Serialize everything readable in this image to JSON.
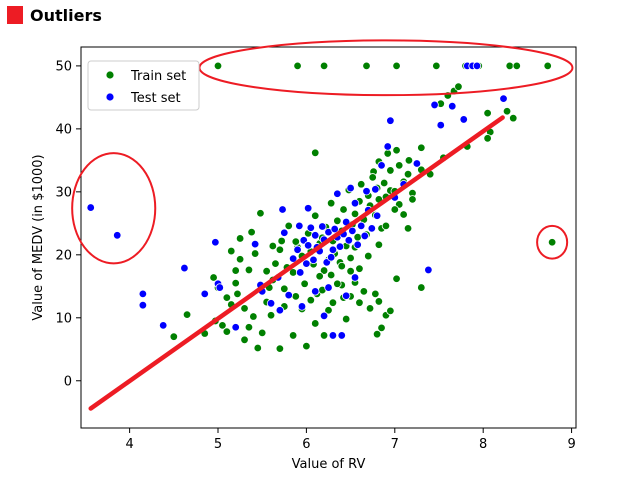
{
  "header": {
    "title": "Outliers",
    "marker_color": "#ed1c24"
  },
  "chart_data": {
    "type": "scatter",
    "title": "",
    "xlabel": "Value of RV",
    "ylabel": "Value of MEDV (in $1000)",
    "xlim": [
      3.45,
      9.05
    ],
    "ylim": [
      -7.5,
      53
    ],
    "xticks": [
      4,
      5,
      6,
      7,
      8,
      9
    ],
    "yticks": [
      0,
      10,
      20,
      30,
      40,
      50
    ],
    "grid": false,
    "legend_position": "top-left",
    "series": [
      {
        "name": "Train set",
        "color": "#008000",
        "points": [
          [
            5.0,
            50
          ],
          [
            5.9,
            50
          ],
          [
            6.2,
            50
          ],
          [
            6.68,
            50
          ],
          [
            7.02,
            50
          ],
          [
            7.47,
            50
          ],
          [
            7.8,
            50
          ],
          [
            7.95,
            50
          ],
          [
            8.3,
            50
          ],
          [
            8.38,
            50
          ],
          [
            8.73,
            50
          ],
          [
            7.67,
            46
          ],
          [
            7.72,
            46.7
          ],
          [
            7.6,
            45.3
          ],
          [
            7.52,
            44
          ],
          [
            8.05,
            42.5
          ],
          [
            8.27,
            42.8
          ],
          [
            8.34,
            41.7
          ],
          [
            8.08,
            39.5
          ],
          [
            8.05,
            38.5
          ],
          [
            7.82,
            37.2
          ],
          [
            7.3,
            37
          ],
          [
            7.4,
            32.8
          ],
          [
            7.3,
            33.5
          ],
          [
            7.16,
            35
          ],
          [
            6.82,
            34.8
          ],
          [
            6.76,
            33.2
          ],
          [
            6.95,
            30.2
          ],
          [
            7.05,
            28
          ],
          [
            7.55,
            35.4
          ],
          [
            8.78,
            22
          ],
          [
            4.65,
            10.5
          ],
          [
            4.97,
            9.5
          ],
          [
            5.05,
            8.8
          ],
          [
            5.2,
            15.5
          ],
          [
            5.3,
            11.5
          ],
          [
            5.2,
            17.5
          ],
          [
            5.25,
            19.3
          ],
          [
            5.35,
            8.5
          ],
          [
            5.42,
            20.2
          ],
          [
            5.5,
            7.6
          ],
          [
            5.55,
            12.5
          ],
          [
            5.58,
            14.8
          ],
          [
            5.62,
            16
          ],
          [
            5.65,
            18.6
          ],
          [
            5.7,
            20.8
          ],
          [
            5.72,
            22.2
          ],
          [
            5.78,
            18
          ],
          [
            5.8,
            24.6
          ],
          [
            5.85,
            17.2
          ],
          [
            5.88,
            13.4
          ],
          [
            5.9,
            21.2
          ],
          [
            5.95,
            19.8
          ],
          [
            5.98,
            15.4
          ],
          [
            6.02,
            23.4
          ],
          [
            6.05,
            20.5
          ],
          [
            6.08,
            18.5
          ],
          [
            6.1,
            26.2
          ],
          [
            6.12,
            13.8
          ],
          [
            6.15,
            21.8
          ],
          [
            6.18,
            22.7
          ],
          [
            6.2,
            17.5
          ],
          [
            6.22,
            24.4
          ],
          [
            6.25,
            19.2
          ],
          [
            6.28,
            28.2
          ],
          [
            6.3,
            22.2
          ],
          [
            6.32,
            20.2
          ],
          [
            6.35,
            25.4
          ],
          [
            6.38,
            18.8
          ],
          [
            6.4,
            23.8
          ],
          [
            6.42,
            27.2
          ],
          [
            6.45,
            21.4
          ],
          [
            6.48,
            30.3
          ],
          [
            6.5,
            19.5
          ],
          [
            6.52,
            24.8
          ],
          [
            6.55,
            26.5
          ],
          [
            6.58,
            22.8
          ],
          [
            6.6,
            28.5
          ],
          [
            6.62,
            31.2
          ],
          [
            6.65,
            25.6
          ],
          [
            6.68,
            23.2
          ],
          [
            6.7,
            29.4
          ],
          [
            6.72,
            27.8
          ],
          [
            6.75,
            32.3
          ],
          [
            6.78,
            26.3
          ],
          [
            6.8,
            30.6
          ],
          [
            6.82,
            28.8
          ],
          [
            6.85,
            24.2
          ],
          [
            6.88,
            31.4
          ],
          [
            6.9,
            29.2
          ],
          [
            6.95,
            33.4
          ],
          [
            7.0,
            30.1
          ],
          [
            7.05,
            34.2
          ],
          [
            7.1,
            31.6
          ],
          [
            7.15,
            32.8
          ],
          [
            7.2,
            29.8
          ],
          [
            6.1,
            36.2
          ],
          [
            5.1,
            13.2
          ],
          [
            5.15,
            12.1
          ],
          [
            5.22,
            13.8
          ],
          [
            5.4,
            10.2
          ],
          [
            5.6,
            10.4
          ],
          [
            5.75,
            11.8
          ],
          [
            6.1,
            9.1
          ],
          [
            6.3,
            12.4
          ],
          [
            6.4,
            15.2
          ],
          [
            6.5,
            13.4
          ],
          [
            6.55,
            15.6
          ],
          [
            6.6,
            17.8
          ],
          [
            6.65,
            14.2
          ],
          [
            6.72,
            11.5
          ],
          [
            6.78,
            13.8
          ],
          [
            6.82,
            12.6
          ],
          [
            6.85,
            8.4
          ],
          [
            6.9,
            10.4
          ],
          [
            6.95,
            11.1
          ],
          [
            7.02,
            16.2
          ],
          [
            6.8,
            7.4
          ],
          [
            6.45,
            9.8
          ],
          [
            6.2,
            7.2
          ],
          [
            6.0,
            5.5
          ],
          [
            5.85,
            7.2
          ],
          [
            5.7,
            5.1
          ],
          [
            5.45,
            5.2
          ],
          [
            5.3,
            6.5
          ],
          [
            5.1,
            7.8
          ],
          [
            4.85,
            7.5
          ],
          [
            4.5,
            7.0
          ],
          [
            5.38,
            23.6
          ],
          [
            5.48,
            26.6
          ],
          [
            5.62,
            21.4
          ],
          [
            5.88,
            22.1
          ],
          [
            6.15,
            16.6
          ],
          [
            6.35,
            15.4
          ],
          [
            6.25,
            11.2
          ],
          [
            6.5,
            17.4
          ],
          [
            6.55,
            21.2
          ],
          [
            6.7,
            19.8
          ],
          [
            6.82,
            21.6
          ],
          [
            6.9,
            24.6
          ],
          [
            7.0,
            27.2
          ],
          [
            7.1,
            26.4
          ],
          [
            7.2,
            28.8
          ],
          [
            7.15,
            24.2
          ],
          [
            6.92,
            36.1
          ],
          [
            7.02,
            36.6
          ],
          [
            7.3,
            14.8
          ],
          [
            5.25,
            22.6
          ],
          [
            5.35,
            17.6
          ],
          [
            5.15,
            20.6
          ],
          [
            5.0,
            14.8
          ],
          [
            4.95,
            16.4
          ],
          [
            5.55,
            17.4
          ],
          [
            5.75,
            14.6
          ],
          [
            5.95,
            11.4
          ],
          [
            6.05,
            12.8
          ],
          [
            6.18,
            14.4
          ],
          [
            6.28,
            16.8
          ],
          [
            6.4,
            18.2
          ],
          [
            6.42,
            13.2
          ],
          [
            6.6,
            12.4
          ]
        ]
      },
      {
        "name": "Test set",
        "color": "#0000ff",
        "points": [
          [
            3.56,
            27.5
          ],
          [
            3.86,
            23.1
          ],
          [
            4.15,
            13.8
          ],
          [
            4.15,
            12.0
          ],
          [
            4.38,
            8.8
          ],
          [
            4.62,
            17.9
          ],
          [
            4.85,
            13.8
          ],
          [
            4.97,
            22.0
          ],
          [
            5.0,
            15.4
          ],
          [
            5.02,
            14.8
          ],
          [
            5.2,
            8.5
          ],
          [
            5.42,
            21.7
          ],
          [
            5.48,
            15.2
          ],
          [
            5.6,
            12.3
          ],
          [
            5.68,
            16.4
          ],
          [
            5.73,
            27.2
          ],
          [
            5.75,
            23.5
          ],
          [
            5.8,
            13.6
          ],
          [
            5.85,
            19.4
          ],
          [
            5.9,
            20.8
          ],
          [
            5.93,
            17.2
          ],
          [
            5.97,
            22.3
          ],
          [
            6.0,
            18.6
          ],
          [
            6.02,
            21.5
          ],
          [
            6.05,
            24.3
          ],
          [
            6.08,
            19.2
          ],
          [
            6.1,
            23.1
          ],
          [
            6.12,
            21.2
          ],
          [
            6.15,
            20.6
          ],
          [
            6.18,
            24.5
          ],
          [
            6.2,
            22.4
          ],
          [
            6.23,
            18.8
          ],
          [
            6.25,
            23.6
          ],
          [
            6.28,
            19.6
          ],
          [
            6.3,
            20.8
          ],
          [
            6.32,
            24.1
          ],
          [
            6.35,
            22.8
          ],
          [
            6.38,
            21.3
          ],
          [
            6.42,
            23.3
          ],
          [
            6.45,
            25.2
          ],
          [
            6.48,
            22.3
          ],
          [
            6.52,
            23.8
          ],
          [
            6.55,
            28.2
          ],
          [
            6.58,
            21.6
          ],
          [
            6.62,
            24.6
          ],
          [
            6.66,
            23.0
          ],
          [
            6.7,
            27.1
          ],
          [
            6.74,
            24.2
          ],
          [
            6.78,
            30.4
          ],
          [
            6.8,
            26.2
          ],
          [
            6.85,
            34.2
          ],
          [
            6.92,
            37.2
          ],
          [
            6.95,
            41.3
          ],
          [
            7.0,
            29.1
          ],
          [
            7.1,
            31.2
          ],
          [
            7.25,
            34.5
          ],
          [
            7.38,
            17.6
          ],
          [
            7.45,
            43.8
          ],
          [
            7.52,
            40.6
          ],
          [
            7.65,
            43.6
          ],
          [
            7.78,
            41.5
          ],
          [
            7.82,
            50
          ],
          [
            7.88,
            50
          ],
          [
            7.93,
            50
          ],
          [
            8.23,
            44.8
          ],
          [
            6.3,
            7.2
          ],
          [
            6.4,
            7.2
          ],
          [
            6.2,
            10.3
          ],
          [
            5.95,
            11.8
          ],
          [
            6.1,
            14.2
          ],
          [
            6.25,
            14.8
          ],
          [
            6.45,
            13.5
          ],
          [
            6.55,
            16.4
          ],
          [
            5.7,
            11.2
          ],
          [
            5.5,
            14.2
          ],
          [
            6.35,
            29.7
          ],
          [
            6.5,
            30.6
          ],
          [
            6.68,
            30.1
          ],
          [
            6.02,
            27.4
          ],
          [
            5.92,
            24.6
          ]
        ]
      }
    ],
    "fit_line": {
      "color": "#ed1c24",
      "from": [
        3.56,
        -4.4
      ],
      "to": [
        8.22,
        41.8
      ]
    },
    "annotations": {
      "color": "#ed1c24",
      "ellipses": [
        {
          "name": "outlier-ellipse-top",
          "cx": 6.9,
          "cy": 49.7,
          "rx": 2.11,
          "ry": 4.35
        },
        {
          "name": "outlier-ellipse-left",
          "cx": 3.82,
          "cy": 27.4,
          "rx": 0.47,
          "ry": 8.75
        },
        {
          "name": "outlier-ellipse-right",
          "cx": 8.78,
          "cy": 22.0,
          "rx": 0.17,
          "ry": 2.6
        }
      ]
    }
  }
}
